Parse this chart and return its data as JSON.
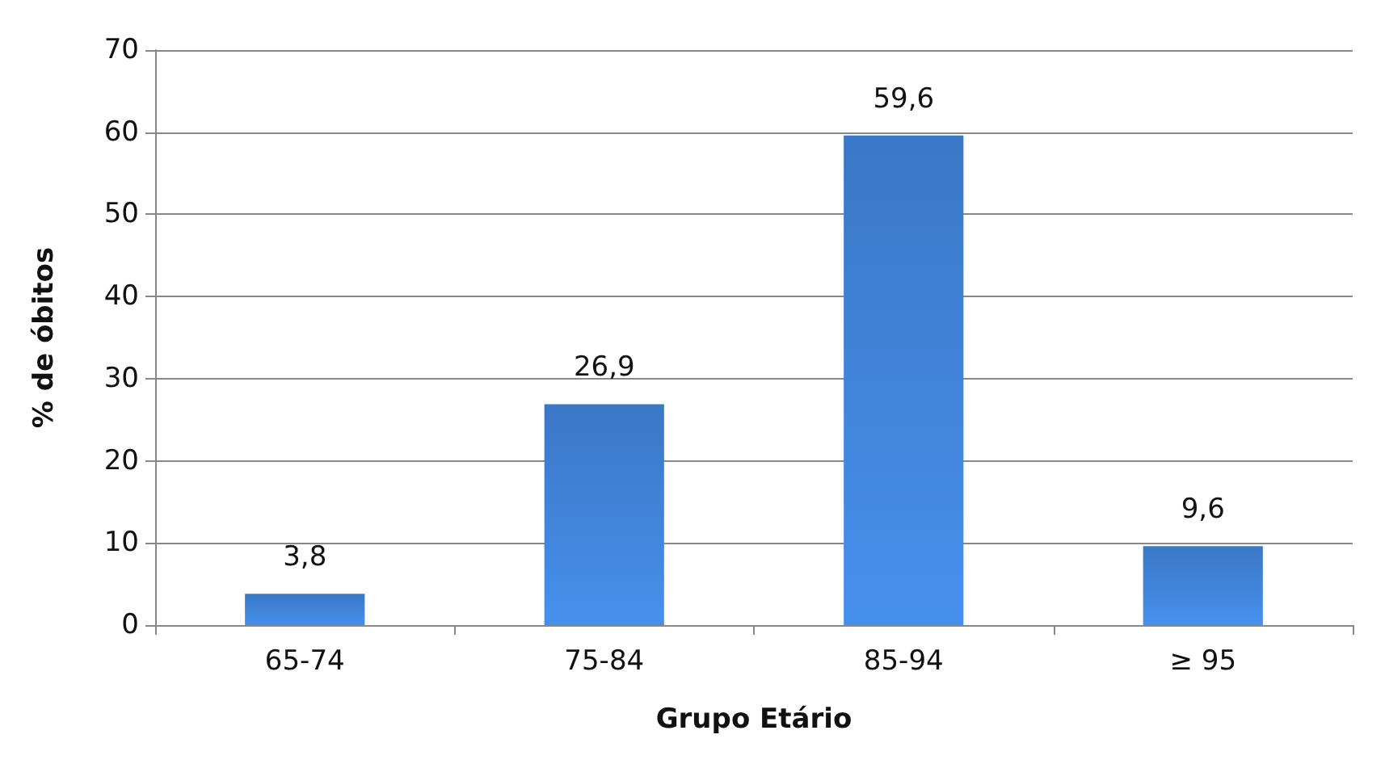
{
  "chart_data": {
    "type": "bar",
    "xlabel": "Grupo Etário",
    "ylabel": "% de óbitos",
    "categories": [
      "65-74",
      "75-84",
      "85-94",
      "≥ 95"
    ],
    "values": [
      3.8,
      26.9,
      59.6,
      9.6
    ],
    "value_labels": [
      "3,8",
      "26,9",
      "59,6",
      "9,6"
    ],
    "color": "#3b78c6",
    "ylim": [
      0,
      70
    ],
    "yticks": [
      0,
      10,
      20,
      30,
      40,
      50,
      60,
      70
    ],
    "grid": "y"
  }
}
